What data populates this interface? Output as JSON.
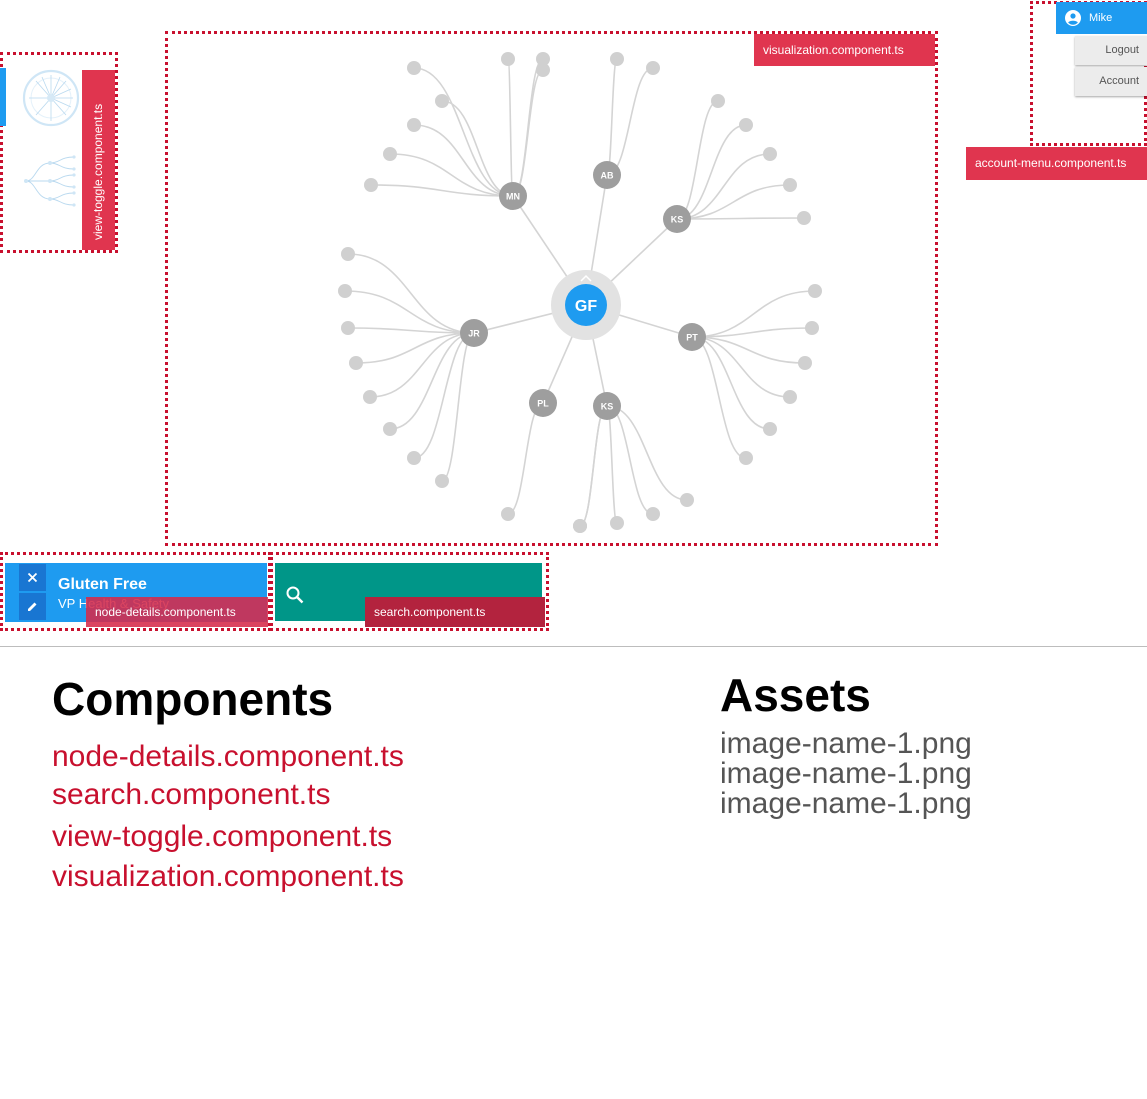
{
  "visualization": {
    "tag": "visualization.component.ts",
    "root": "GF",
    "branches": [
      {
        "label": "MN",
        "leaves": 8
      },
      {
        "label": "AB",
        "leaves": 2
      },
      {
        "label": "KS",
        "leaves": 5
      },
      {
        "label": "JR",
        "leaves": 8
      },
      {
        "label": "PT",
        "leaves": 7
      },
      {
        "label": "PL",
        "leaves": 1
      },
      {
        "label": "KS",
        "leaves": 5
      }
    ]
  },
  "view_toggle": {
    "tag": "view-toggle.component.ts"
  },
  "account_menu": {
    "tag": "account-menu.component.ts",
    "user": "Mike",
    "logout": "Logout",
    "account": "Account"
  },
  "node_details": {
    "tag": "node-details.component.ts",
    "name": "Gluten Free",
    "role": "VP Health & Safety"
  },
  "search": {
    "tag": "search.component.ts"
  },
  "components": {
    "heading": "Components",
    "items": [
      "node-details.component.ts",
      "search.component.ts",
      "view-toggle.component.ts",
      "visualization.component.ts"
    ]
  },
  "assets": {
    "heading": "Assets",
    "items": [
      "image-name-1.png",
      "image-name-1.png",
      "image-name-1.png"
    ]
  },
  "colors": {
    "accent": "#1e9bf0",
    "tag": "#e0354f",
    "dash": "#c8102e",
    "search": "#009688",
    "node": "#9e9e9e",
    "leaf": "#d0d0d0"
  }
}
